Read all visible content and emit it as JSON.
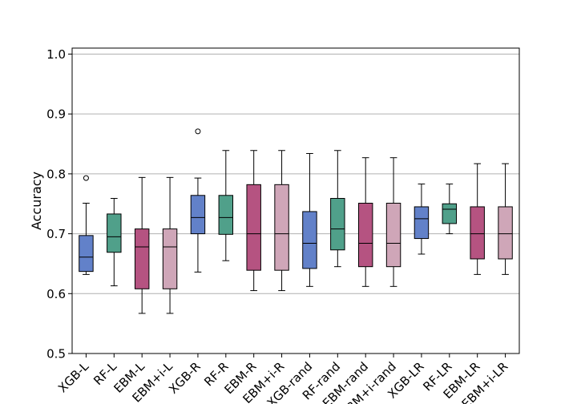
{
  "chart_data": {
    "type": "box",
    "title": "",
    "xlabel": "",
    "ylabel": "Accuracy",
    "ylim": [
      0.5,
      1.01
    ],
    "yticks": [
      0.5,
      0.6,
      0.7,
      0.8,
      0.9,
      1.0
    ],
    "ytick_labels": [
      "0.5",
      "0.6",
      "0.7",
      "0.8",
      "0.9",
      "1.0"
    ],
    "grid": "horizontal",
    "colors": {
      "XGB": "#6281c9",
      "RF": "#50a08a",
      "EBM": "#b55381",
      "EBM+i": "#cfa6b8",
      "outline": "#000000",
      "gridline": "#b0b0b0"
    },
    "categories": [
      "XGB-L",
      "RF-L",
      "EBM-L",
      "EBM+i-L",
      "XGB-R",
      "RF-R",
      "EBM-R",
      "EBM+i-R",
      "XGB-rand",
      "RF-rand",
      "EBM-rand",
      "EBM+i-rand",
      "XGB-LR",
      "RF-LR",
      "EBM-LR",
      "EBM+i-LR"
    ],
    "boxes": [
      {
        "label": "XGB-L",
        "family": "XGB",
        "whisker_low": 0.632,
        "q1": 0.637,
        "median": 0.661,
        "q3": 0.697,
        "whisker_high": 0.751,
        "outliers": [
          0.793
        ]
      },
      {
        "label": "RF-L",
        "family": "RF",
        "whisker_low": 0.613,
        "q1": 0.669,
        "median": 0.695,
        "q3": 0.733,
        "whisker_high": 0.759,
        "outliers": []
      },
      {
        "label": "EBM-L",
        "family": "EBM",
        "whisker_low": 0.567,
        "q1": 0.608,
        "median": 0.678,
        "q3": 0.708,
        "whisker_high": 0.794,
        "outliers": []
      },
      {
        "label": "EBM+i-L",
        "family": "EBM+i",
        "whisker_low": 0.567,
        "q1": 0.608,
        "median": 0.678,
        "q3": 0.708,
        "whisker_high": 0.794,
        "outliers": []
      },
      {
        "label": "XGB-R",
        "family": "XGB",
        "whisker_low": 0.636,
        "q1": 0.7,
        "median": 0.727,
        "q3": 0.764,
        "whisker_high": 0.793,
        "outliers": [
          0.871
        ]
      },
      {
        "label": "RF-R",
        "family": "RF",
        "whisker_low": 0.655,
        "q1": 0.699,
        "median": 0.727,
        "q3": 0.764,
        "whisker_high": 0.839,
        "outliers": []
      },
      {
        "label": "EBM-R",
        "family": "EBM",
        "whisker_low": 0.605,
        "q1": 0.639,
        "median": 0.7,
        "q3": 0.782,
        "whisker_high": 0.839,
        "outliers": []
      },
      {
        "label": "EBM+i-R",
        "family": "EBM+i",
        "whisker_low": 0.605,
        "q1": 0.639,
        "median": 0.7,
        "q3": 0.782,
        "whisker_high": 0.839,
        "outliers": []
      },
      {
        "label": "XGB-rand",
        "family": "XGB",
        "whisker_low": 0.612,
        "q1": 0.642,
        "median": 0.684,
        "q3": 0.737,
        "whisker_high": 0.834,
        "outliers": []
      },
      {
        "label": "RF-rand",
        "family": "RF",
        "whisker_low": 0.645,
        "q1": 0.673,
        "median": 0.708,
        "q3": 0.759,
        "whisker_high": 0.839,
        "outliers": []
      },
      {
        "label": "EBM-rand",
        "family": "EBM",
        "whisker_low": 0.612,
        "q1": 0.645,
        "median": 0.684,
        "q3": 0.751,
        "whisker_high": 0.827,
        "outliers": []
      },
      {
        "label": "EBM+i-rand",
        "family": "EBM+i",
        "whisker_low": 0.612,
        "q1": 0.645,
        "median": 0.684,
        "q3": 0.751,
        "whisker_high": 0.827,
        "outliers": []
      },
      {
        "label": "XGB-LR",
        "family": "XGB",
        "whisker_low": 0.666,
        "q1": 0.692,
        "median": 0.725,
        "q3": 0.745,
        "whisker_high": 0.783,
        "outliers": []
      },
      {
        "label": "RF-LR",
        "family": "RF",
        "whisker_low": 0.7,
        "q1": 0.717,
        "median": 0.741,
        "q3": 0.75,
        "whisker_high": 0.783,
        "outliers": []
      },
      {
        "label": "EBM-LR",
        "family": "EBM",
        "whisker_low": 0.632,
        "q1": 0.658,
        "median": 0.7,
        "q3": 0.745,
        "whisker_high": 0.817,
        "outliers": []
      },
      {
        "label": "EBM+i-LR",
        "family": "EBM+i",
        "whisker_low": 0.632,
        "q1": 0.658,
        "median": 0.7,
        "q3": 0.745,
        "whisker_high": 0.817,
        "outliers": []
      }
    ]
  }
}
